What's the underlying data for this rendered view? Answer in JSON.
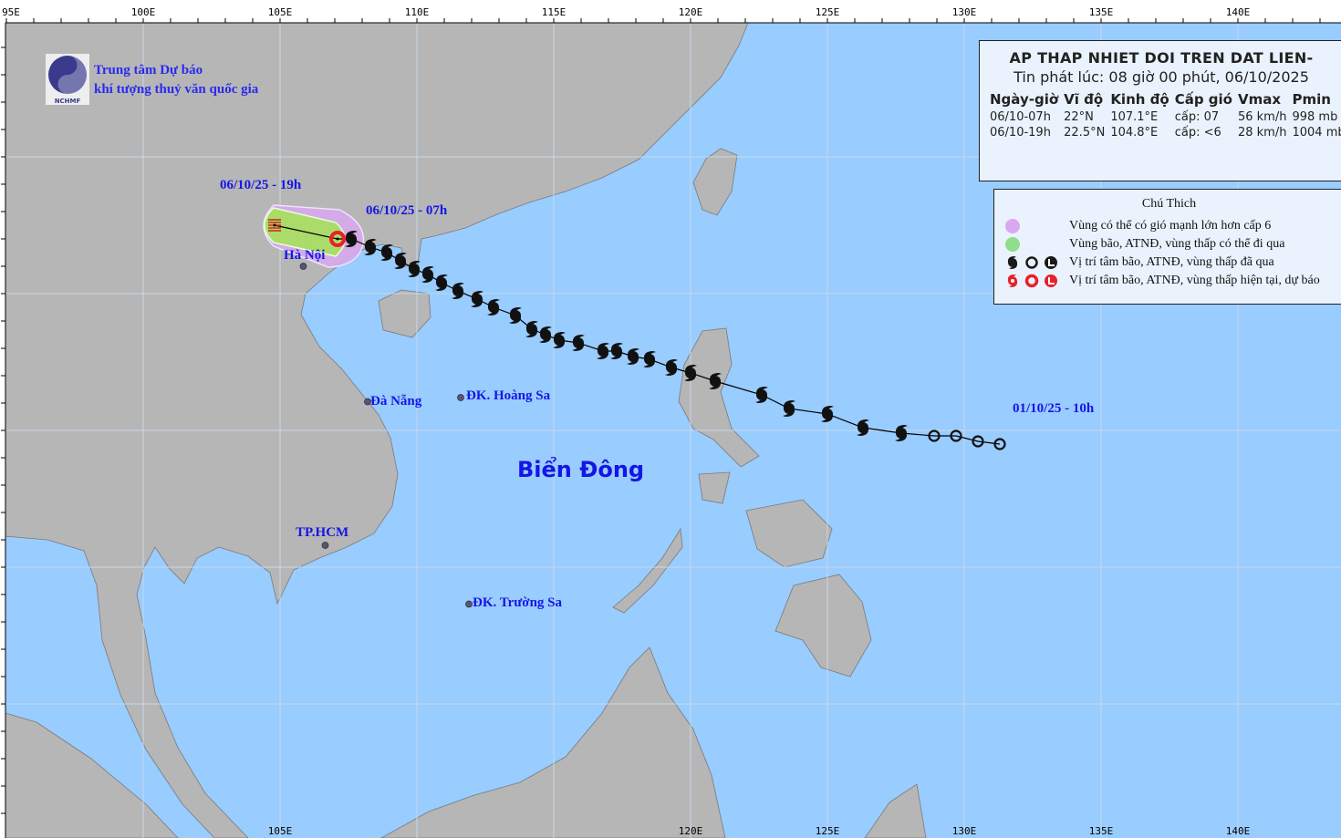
{
  "header": {
    "org_line1": "Trung tâm Dự báo",
    "org_line2": "khí tượng thuỷ văn quốc gia",
    "logo_text": "NCHMF"
  },
  "axes": {
    "top_labels": [
      "95E",
      "100E",
      "105E",
      "110E",
      "115E",
      "120E",
      "125E",
      "130E",
      "135E",
      "140E"
    ],
    "top_lons": [
      95,
      100,
      105,
      110,
      115,
      120,
      125,
      130,
      135,
      140
    ],
    "bottom_labels": [
      "105E",
      "120E",
      "125E",
      "130E",
      "135E",
      "140E"
    ],
    "bottom_lons": [
      105,
      120,
      125,
      130,
      135,
      140
    ]
  },
  "info": {
    "title": "AP THAP NHIET DOI TREN DAT LIEN-",
    "issued": "Tin phát lúc: 08 giờ 00 phút, 06/10/2025",
    "columns": [
      "Ngày-giờ",
      "Vĩ độ",
      "Kinh độ",
      "Cấp gió",
      "Vmax",
      "Pmin"
    ],
    "rows": [
      [
        "06/10-07h",
        "22°N",
        "107.1°E",
        "cấp: 07",
        "56 km/h",
        "998 mb"
      ],
      [
        "06/10-19h",
        "22.5°N",
        "104.8°E",
        "cấp: <6",
        "28 km/h",
        "1004 mb"
      ]
    ]
  },
  "legend": {
    "title": "Chú Thich",
    "items": [
      {
        "text": "Vùng có thể có gió mạnh lớn hơn cấp 6",
        "color": "#d9a8f0"
      },
      {
        "text": "Vùng bão, ATNĐ, vùng thấp có thể đi qua",
        "color": "#8ede8a"
      },
      {
        "text": "Vị trí tâm bão, ATNĐ, vùng thấp đã qua",
        "color": "#1a1a1a"
      },
      {
        "text": "Vị trí tâm bão, ATNĐ, vùng thấp hiện tại, dự báo",
        "color": "#e8202a"
      }
    ]
  },
  "places": {
    "ha_noi": "Hà Nội",
    "da_nang": "Đà Nẵng",
    "hoang_sa": "ĐK. Hoàng Sa",
    "truong_sa": "ĐK. Trường Sa",
    "tp_hcm": "TP.HCM",
    "bien_dong": "Biển Đông"
  },
  "time_labels": {
    "forecast": "06/10/25 - 19h",
    "current": "06/10/25 - 07h",
    "start": "01/10/25 - 10h"
  },
  "track": {
    "past": [
      {
        "lon": 131.3,
        "lat": 14.5,
        "type": "low"
      },
      {
        "lon": 130.5,
        "lat": 14.6,
        "type": "low"
      },
      {
        "lon": 129.7,
        "lat": 14.8,
        "type": "low"
      },
      {
        "lon": 128.9,
        "lat": 14.8,
        "type": "low"
      },
      {
        "lon": 127.7,
        "lat": 14.9,
        "type": "storm"
      },
      {
        "lon": 126.3,
        "lat": 15.1,
        "type": "storm"
      },
      {
        "lon": 125.0,
        "lat": 15.6,
        "type": "storm"
      },
      {
        "lon": 123.6,
        "lat": 15.8,
        "type": "storm"
      },
      {
        "lon": 122.6,
        "lat": 16.3,
        "type": "storm"
      },
      {
        "lon": 120.9,
        "lat": 16.8,
        "type": "storm"
      },
      {
        "lon": 120.0,
        "lat": 17.1,
        "type": "storm"
      },
      {
        "lon": 119.3,
        "lat": 17.3,
        "type": "storm"
      },
      {
        "lon": 118.5,
        "lat": 17.6,
        "type": "storm"
      },
      {
        "lon": 117.9,
        "lat": 17.7,
        "type": "storm"
      },
      {
        "lon": 117.3,
        "lat": 17.9,
        "type": "storm"
      },
      {
        "lon": 116.8,
        "lat": 17.9,
        "type": "storm"
      },
      {
        "lon": 115.9,
        "lat": 18.2,
        "type": "storm"
      },
      {
        "lon": 115.2,
        "lat": 18.3,
        "type": "storm"
      },
      {
        "lon": 114.7,
        "lat": 18.5,
        "type": "storm"
      },
      {
        "lon": 114.2,
        "lat": 18.7,
        "type": "storm"
      },
      {
        "lon": 113.6,
        "lat": 19.2,
        "type": "storm"
      },
      {
        "lon": 112.8,
        "lat": 19.5,
        "type": "storm"
      },
      {
        "lon": 112.2,
        "lat": 19.8,
        "type": "storm"
      },
      {
        "lon": 111.5,
        "lat": 20.1,
        "type": "storm"
      },
      {
        "lon": 110.9,
        "lat": 20.4,
        "type": "storm"
      },
      {
        "lon": 110.4,
        "lat": 20.7,
        "type": "storm"
      },
      {
        "lon": 109.9,
        "lat": 20.9,
        "type": "storm"
      },
      {
        "lon": 109.4,
        "lat": 21.2,
        "type": "storm"
      },
      {
        "lon": 108.9,
        "lat": 21.5,
        "type": "storm"
      },
      {
        "lon": 108.3,
        "lat": 21.7,
        "type": "storm"
      },
      {
        "lon": 107.6,
        "lat": 22.0,
        "type": "storm"
      }
    ],
    "current": {
      "lon": 107.1,
      "lat": 22.0,
      "type": "depression"
    },
    "forecast": [
      {
        "lon": 104.8,
        "lat": 22.5,
        "type": "low"
      }
    ]
  },
  "colors": {
    "ocean": "#99ccff",
    "land": "#b6b6b6",
    "border": "#ffffff",
    "strong_wind_area": "#d9a8f0",
    "danger_area": "#a6e05a",
    "label_blue": "#1515e6",
    "current_marker": "#e8202a"
  }
}
